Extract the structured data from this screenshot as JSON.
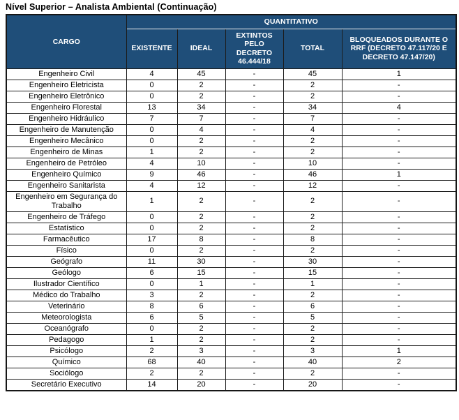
{
  "page_title": "Nível Superior – Analista Ambiental (Continuação)",
  "colors": {
    "header_background": "#1F4E79",
    "header_text": "#FFFFFF",
    "body_text": "#000000",
    "border": "#1C1C1C"
  },
  "table": {
    "group_header": "QUANTITATIVO",
    "headers": {
      "cargo": "CARGO",
      "existente": "EXISTENTE",
      "ideal": "IDEAL",
      "extintos": "EXTINTOS PELO DECRETO 46.444/18",
      "total": "TOTAL",
      "bloqueados": "BLOQUEADOS DURANTE O RRF (DECRETO 47.117/20 E DECRETO 47.147/20)"
    },
    "field_order": [
      "cargo",
      "existente",
      "ideal",
      "extintos",
      "total",
      "bloqueados"
    ],
    "rows": [
      {
        "cargo": "Engenheiro Civil",
        "existente": "4",
        "ideal": "45",
        "extintos": "-",
        "total": "45",
        "bloqueados": "1"
      },
      {
        "cargo": "Engenheiro Eletricista",
        "existente": "0",
        "ideal": "2",
        "extintos": "-",
        "total": "2",
        "bloqueados": "-"
      },
      {
        "cargo": "Engenheiro Eletrônico",
        "existente": "0",
        "ideal": "2",
        "extintos": "-",
        "total": "2",
        "bloqueados": "-"
      },
      {
        "cargo": "Engenheiro Florestal",
        "existente": "13",
        "ideal": "34",
        "extintos": "-",
        "total": "34",
        "bloqueados": "4"
      },
      {
        "cargo": "Engenheiro Hidráulico",
        "existente": "7",
        "ideal": "7",
        "extintos": "-",
        "total": "7",
        "bloqueados": "-"
      },
      {
        "cargo": "Engenheiro de Manutenção",
        "existente": "0",
        "ideal": "4",
        "extintos": "-",
        "total": "4",
        "bloqueados": "-"
      },
      {
        "cargo": "Engenheiro Mecânico",
        "existente": "0",
        "ideal": "2",
        "extintos": "-",
        "total": "2",
        "bloqueados": "-"
      },
      {
        "cargo": "Engenheiro de Minas",
        "existente": "1",
        "ideal": "2",
        "extintos": "-",
        "total": "2",
        "bloqueados": "-"
      },
      {
        "cargo": "Engenheiro de Petróleo",
        "existente": "4",
        "ideal": "10",
        "extintos": "-",
        "total": "10",
        "bloqueados": "-"
      },
      {
        "cargo": "Engenheiro Químico",
        "existente": "9",
        "ideal": "46",
        "extintos": "-",
        "total": "46",
        "bloqueados": "1"
      },
      {
        "cargo": "Engenheiro Sanitarista",
        "existente": "4",
        "ideal": "12",
        "extintos": "-",
        "total": "12",
        "bloqueados": "-"
      },
      {
        "cargo": "Engenheiro em Segurança do Trabalho",
        "existente": "1",
        "ideal": "2",
        "extintos": "-",
        "total": "2",
        "bloqueados": "-"
      },
      {
        "cargo": "Engenheiro de Tráfego",
        "existente": "0",
        "ideal": "2",
        "extintos": "-",
        "total": "2",
        "bloqueados": "-"
      },
      {
        "cargo": "Estatístico",
        "existente": "0",
        "ideal": "2",
        "extintos": "-",
        "total": "2",
        "bloqueados": "-"
      },
      {
        "cargo": "Farmacêutico",
        "existente": "17",
        "ideal": "8",
        "extintos": "-",
        "total": "8",
        "bloqueados": "-"
      },
      {
        "cargo": "Físico",
        "existente": "0",
        "ideal": "2",
        "extintos": "-",
        "total": "2",
        "bloqueados": "-"
      },
      {
        "cargo": "Geógrafo",
        "existente": "11",
        "ideal": "30",
        "extintos": "-",
        "total": "30",
        "bloqueados": "-"
      },
      {
        "cargo": "Geólogo",
        "existente": "6",
        "ideal": "15",
        "extintos": "-",
        "total": "15",
        "bloqueados": "-"
      },
      {
        "cargo": "Ilustrador Científico",
        "existente": "0",
        "ideal": "1",
        "extintos": "-",
        "total": "1",
        "bloqueados": "-"
      },
      {
        "cargo": "Médico do Trabalho",
        "existente": "3",
        "ideal": "2",
        "extintos": "-",
        "total": "2",
        "bloqueados": "-"
      },
      {
        "cargo": "Veterinário",
        "existente": "8",
        "ideal": "6",
        "extintos": "-",
        "total": "6",
        "bloqueados": "-"
      },
      {
        "cargo": "Meteorologista",
        "existente": "6",
        "ideal": "5",
        "extintos": "-",
        "total": "5",
        "bloqueados": "-"
      },
      {
        "cargo": "Oceanógrafo",
        "existente": "0",
        "ideal": "2",
        "extintos": "-",
        "total": "2",
        "bloqueados": "-"
      },
      {
        "cargo": "Pedagogo",
        "existente": "1",
        "ideal": "2",
        "extintos": "-",
        "total": "2",
        "bloqueados": "-"
      },
      {
        "cargo": "Psicólogo",
        "existente": "2",
        "ideal": "3",
        "extintos": "-",
        "total": "3",
        "bloqueados": "1"
      },
      {
        "cargo": "Químico",
        "existente": "68",
        "ideal": "40",
        "extintos": "-",
        "total": "40",
        "bloqueados": "2"
      },
      {
        "cargo": "Sociólogo",
        "existente": "2",
        "ideal": "2",
        "extintos": "-",
        "total": "2",
        "bloqueados": "-"
      },
      {
        "cargo": "Secretário Executivo",
        "existente": "14",
        "ideal": "20",
        "extintos": "-",
        "total": "20",
        "bloqueados": "-"
      }
    ]
  }
}
